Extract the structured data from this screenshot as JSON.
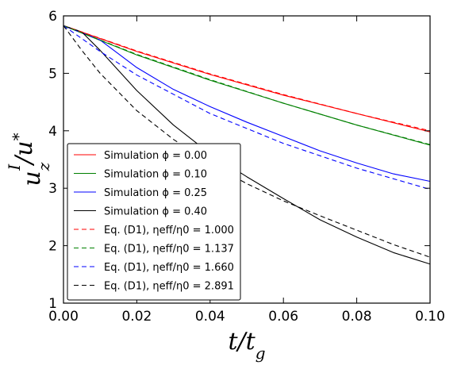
{
  "chart_data": {
    "type": "line",
    "xlabel": "t/t_g",
    "ylabel": "u_z^I/u^*",
    "xlim": [
      0.0,
      0.1
    ],
    "ylim": [
      1,
      6
    ],
    "x_ticks": [
      "0.00",
      "0.02",
      "0.04",
      "0.06",
      "0.08",
      "0.10"
    ],
    "y_ticks": [
      "1",
      "2",
      "3",
      "4",
      "5",
      "6"
    ],
    "grid": false,
    "legend_position": "lower-left",
    "series": [
      {
        "name": "Simulation ϕ = 0.00",
        "color": "#ff0000",
        "dash": "solid",
        "x": [
          0.0,
          0.02,
          0.04,
          0.06,
          0.08,
          0.1
        ],
        "y": [
          5.83,
          5.38,
          4.98,
          4.62,
          4.3,
          3.98
        ]
      },
      {
        "name": "Simulation ϕ = 0.10",
        "color": "#008000",
        "dash": "solid",
        "x": [
          0.0,
          0.02,
          0.04,
          0.06,
          0.08,
          0.1
        ],
        "y": [
          5.83,
          5.32,
          4.88,
          4.48,
          4.1,
          3.75
        ]
      },
      {
        "name": "Simulation ϕ = 0.25",
        "color": "#0000ff",
        "dash": "solid",
        "x": [
          0.0,
          0.01,
          0.02,
          0.03,
          0.04,
          0.05,
          0.06,
          0.07,
          0.08,
          0.09,
          0.1
        ],
        "y": [
          5.83,
          5.58,
          5.1,
          4.72,
          4.42,
          4.15,
          3.9,
          3.65,
          3.44,
          3.25,
          3.12
        ]
      },
      {
        "name": "Simulation ϕ = 0.40",
        "color": "#000000",
        "dash": "solid",
        "x": [
          0.0,
          0.005,
          0.01,
          0.02,
          0.03,
          0.04,
          0.05,
          0.06,
          0.07,
          0.08,
          0.09,
          0.1
        ],
        "y": [
          5.83,
          5.72,
          5.4,
          4.7,
          4.1,
          3.6,
          3.2,
          2.82,
          2.45,
          2.15,
          1.88,
          1.68
        ]
      },
      {
        "name": "Eq. (D1), ηeff/η0 = 1.000",
        "color": "#ff0000",
        "dash": "dashed",
        "x": [
          0.0,
          0.02,
          0.04,
          0.06,
          0.08,
          0.1
        ],
        "y": [
          5.83,
          5.39,
          4.99,
          4.63,
          4.3,
          4.0
        ]
      },
      {
        "name": "Eq. (D1), ηeff/η0 = 1.137",
        "color": "#008000",
        "dash": "dashed",
        "x": [
          0.0,
          0.02,
          0.04,
          0.06,
          0.08,
          0.1
        ],
        "y": [
          5.83,
          5.33,
          4.89,
          4.48,
          4.1,
          3.76
        ]
      },
      {
        "name": "Eq. (D1), ηeff/η0 = 1.660",
        "color": "#0000ff",
        "dash": "dashed",
        "x": [
          0.0,
          0.01,
          0.02,
          0.04,
          0.06,
          0.08,
          0.1
        ],
        "y": [
          5.83,
          5.38,
          4.97,
          4.3,
          3.78,
          3.35,
          2.98
        ]
      },
      {
        "name": "Eq. (D1), ηeff/η0 = 2.891",
        "color": "#000000",
        "dash": "dashed",
        "x": [
          0.0,
          0.005,
          0.01,
          0.02,
          0.03,
          0.04,
          0.05,
          0.06,
          0.07,
          0.08,
          0.09,
          0.1
        ],
        "y": [
          5.83,
          5.4,
          5.0,
          4.35,
          3.85,
          3.43,
          3.08,
          2.78,
          2.52,
          2.27,
          2.02,
          1.8
        ]
      }
    ]
  }
}
